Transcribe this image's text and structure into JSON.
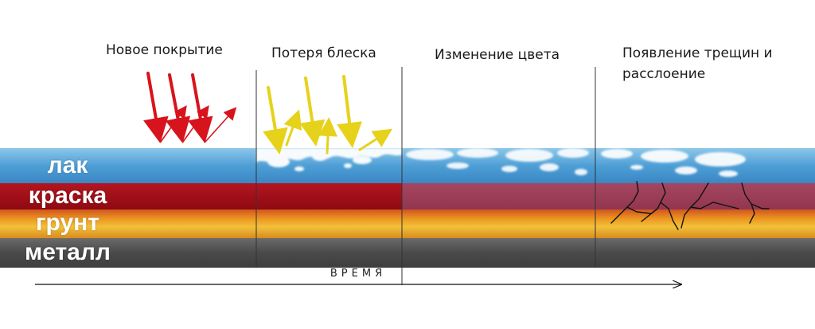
{
  "stages": [
    {
      "id": "new",
      "title_lines": [
        "Новое покрытие"
      ]
    },
    {
      "id": "gloss",
      "title_lines": [
        "Потеря блеска"
      ]
    },
    {
      "id": "color",
      "title_lines": [
        "Изменение цвета"
      ]
    },
    {
      "id": "cracks",
      "title_lines": [
        "Появление трещин и",
        "расслоение"
      ]
    }
  ],
  "layers": [
    {
      "id": "lak",
      "label": "лак",
      "color": "#4e9fd6"
    },
    {
      "id": "kraska",
      "label": "краска",
      "color": "#a30d16",
      "faded_color": "#9e3d56"
    },
    {
      "id": "grunt",
      "label": "грунт",
      "color": "#e59a1f"
    },
    {
      "id": "metall",
      "label": "металл",
      "color": "#555555"
    }
  ],
  "time_axis": {
    "label": "ВРЕМЯ"
  },
  "arrows": {
    "incident_color": "#d7141d",
    "scatter_color": "#e6d21b"
  }
}
